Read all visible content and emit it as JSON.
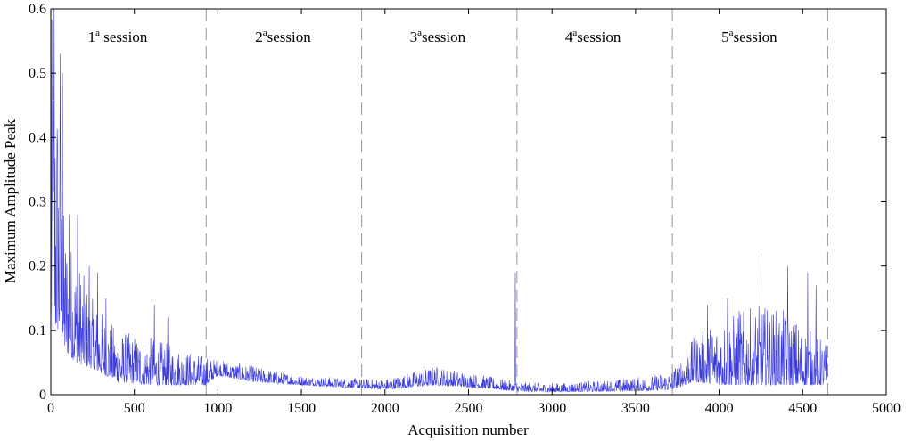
{
  "chart_data": {
    "type": "line",
    "title": "",
    "xlabel": "Acquisition number",
    "ylabel": "Maximum Amplitude Peak",
    "xlim": [
      0,
      5000
    ],
    "ylim": [
      0,
      0.6
    ],
    "x_ticks": [
      "0",
      "500",
      "1000",
      "1500",
      "2000",
      "2500",
      "3000",
      "3500",
      "4000",
      "4500",
      "5000"
    ],
    "y_ticks": [
      "0",
      "0.1",
      "0.2",
      "0.3",
      "0.4",
      "0.5",
      "0.6"
    ],
    "grid": false,
    "line_color": "#3b3bdd",
    "divider_color": "#999999",
    "session_boundaries": [
      930,
      1860,
      2790,
      3720,
      4650
    ],
    "sessions": [
      {
        "base": "1",
        "sup": "a",
        "rest": " session",
        "x_center": 400
      },
      {
        "base": "2",
        "sup": "a",
        "rest": "session",
        "x_center": 1390
      },
      {
        "base": "3",
        "sup": "a",
        "rest": "session",
        "x_center": 2315
      },
      {
        "base": "4",
        "sup": "a",
        "rest": "session",
        "x_center": 3245
      },
      {
        "base": "5",
        "sup": "a",
        "rest": "session",
        "x_center": 4180
      }
    ],
    "series": [
      {
        "color": "#3b3bdd",
        "envelope": [
          {
            "x": 0,
            "low": 0.09,
            "high": 0.6
          },
          {
            "x": 40,
            "low": 0.1,
            "high": 0.52
          },
          {
            "x": 80,
            "low": 0.07,
            "high": 0.28
          },
          {
            "x": 150,
            "low": 0.05,
            "high": 0.22
          },
          {
            "x": 250,
            "low": 0.04,
            "high": 0.15
          },
          {
            "x": 400,
            "low": 0.02,
            "high": 0.1
          },
          {
            "x": 600,
            "low": 0.015,
            "high": 0.09
          },
          {
            "x": 800,
            "low": 0.015,
            "high": 0.07
          },
          {
            "x": 930,
            "low": 0.015,
            "high": 0.06
          },
          {
            "x": 1000,
            "low": 0.03,
            "high": 0.055
          },
          {
            "x": 1200,
            "low": 0.02,
            "high": 0.045
          },
          {
            "x": 1500,
            "low": 0.015,
            "high": 0.03
          },
          {
            "x": 1860,
            "low": 0.01,
            "high": 0.025
          },
          {
            "x": 2000,
            "low": 0.008,
            "high": 0.025
          },
          {
            "x": 2300,
            "low": 0.015,
            "high": 0.045
          },
          {
            "x": 2600,
            "low": 0.01,
            "high": 0.03
          },
          {
            "x": 2790,
            "low": 0.005,
            "high": 0.02
          },
          {
            "x": 3000,
            "low": 0.004,
            "high": 0.018
          },
          {
            "x": 3300,
            "low": 0.005,
            "high": 0.022
          },
          {
            "x": 3600,
            "low": 0.006,
            "high": 0.03
          },
          {
            "x": 3720,
            "low": 0.008,
            "high": 0.04
          },
          {
            "x": 3850,
            "low": 0.02,
            "high": 0.09
          },
          {
            "x": 4000,
            "low": 0.015,
            "high": 0.12
          },
          {
            "x": 4250,
            "low": 0.015,
            "high": 0.14
          },
          {
            "x": 4400,
            "low": 0.015,
            "high": 0.13
          },
          {
            "x": 4650,
            "low": 0.015,
            "high": 0.08
          }
        ],
        "spikes": [
          [
            20,
            0.6
          ],
          [
            55,
            0.53
          ],
          [
            70,
            0.5
          ],
          [
            110,
            0.28
          ],
          [
            160,
            0.28
          ],
          [
            230,
            0.2
          ],
          [
            280,
            0.19
          ],
          [
            330,
            0.15
          ],
          [
            620,
            0.14
          ],
          [
            700,
            0.12
          ],
          [
            2780,
            0.19
          ],
          [
            4250,
            0.22
          ],
          [
            4410,
            0.2
          ],
          [
            4530,
            0.19
          ],
          [
            4580,
            0.17
          ],
          [
            3930,
            0.14
          ],
          [
            4050,
            0.15
          ],
          [
            4120,
            0.13
          ]
        ]
      }
    ]
  }
}
